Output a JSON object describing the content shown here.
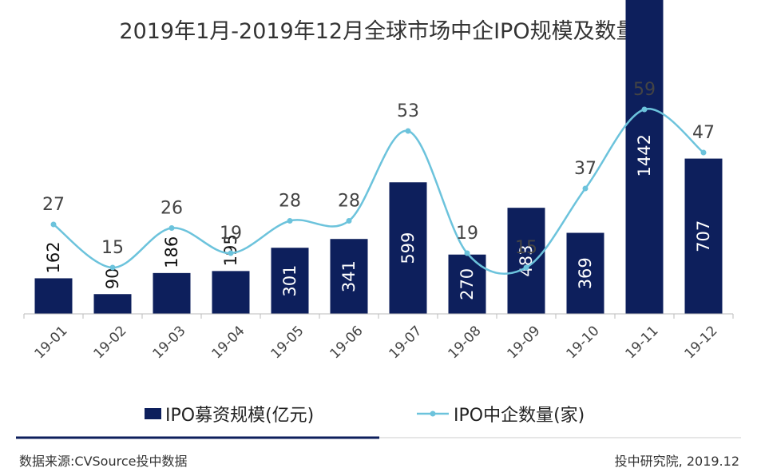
{
  "chart_data": {
    "type": "bar",
    "title": "2019年1月-2019年12月全球市场中企IPO规模及数量",
    "categories": [
      "19-01",
      "19-02",
      "19-03",
      "19-04",
      "19-05",
      "19-06",
      "19-07",
      "19-08",
      "19-09",
      "19-10",
      "19-11",
      "19-12"
    ],
    "series": [
      {
        "name": "IPO募资规模(亿元)",
        "kind": "bar",
        "color": "#0d1f5c",
        "values": [
          162,
          90,
          186,
          195,
          301,
          341,
          599,
          270,
          483,
          369,
          1442,
          707
        ],
        "labels": [
          "162",
          "90",
          "186",
          "195",
          "301",
          "341",
          "599",
          "270",
          "483",
          "369",
          "1442",
          "707"
        ]
      },
      {
        "name": "IPO中企数量(家)",
        "kind": "line",
        "color": "#6cc3dc",
        "values": [
          27,
          15,
          26,
          19,
          28,
          28,
          53,
          19,
          15,
          37,
          59,
          47
        ],
        "labels": [
          "27",
          "15",
          "26",
          "19",
          "28",
          "28",
          "53",
          "19",
          "15",
          "37",
          "59",
          "47"
        ]
      }
    ],
    "bar_ylim": [
      0,
      1700
    ],
    "line_ylim": [
      -17,
      63
    ],
    "xlabel": "",
    "ylabel": "",
    "legend": [
      "IPO募资规模(亿元)",
      "IPO中企数量(家)"
    ],
    "legend_position": "bottom",
    "grid": false
  },
  "footer": {
    "source": "数据来源:CVSource投中数据",
    "credit": "投中研究院, 2019.12"
  }
}
